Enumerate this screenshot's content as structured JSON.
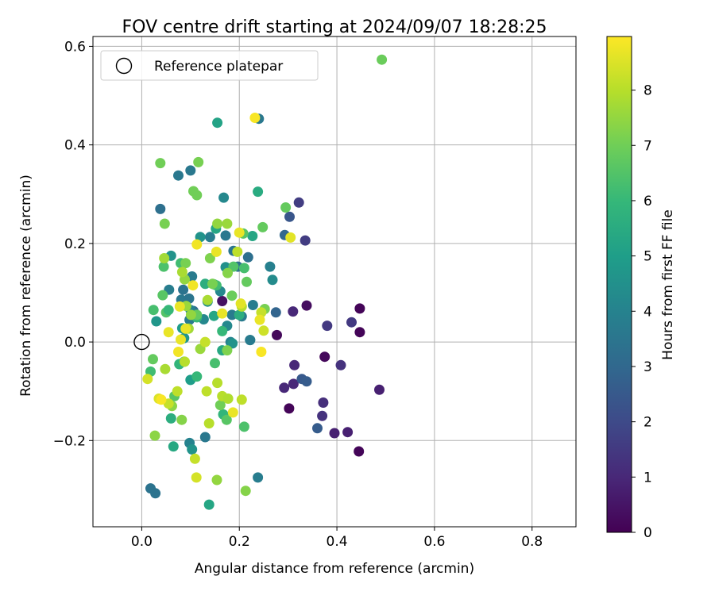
{
  "chart_data": {
    "type": "scatter",
    "title": "FOV centre drift starting at 2024/09/07 18:28:25",
    "xlabel": "Angular distance from reference (arcmin)",
    "ylabel": "Rotation from reference (arcmin)",
    "xlim": [
      -0.1,
      0.89
    ],
    "ylim": [
      -0.375,
      0.62
    ],
    "xticks": [
      0.0,
      0.2,
      0.4,
      0.6,
      0.8
    ],
    "xtick_labels": [
      "0.0",
      "0.2",
      "0.4",
      "0.6",
      "0.8"
    ],
    "yticks": [
      -0.2,
      0.0,
      0.2,
      0.4,
      0.6
    ],
    "ytick_labels": [
      "−0.2",
      "0.0",
      "0.2",
      "0.4",
      "0.6"
    ],
    "grid": true,
    "legend": {
      "placement": "top-left",
      "entries": [
        "Reference platepar"
      ]
    },
    "reference_point": {
      "x": 0.0,
      "y": 0.0,
      "label": "Reference platepar"
    },
    "colorbar": {
      "label": "Hours from first FF file",
      "colormap": "viridis",
      "range": [
        0,
        8.97
      ],
      "ticks": [
        0,
        1,
        2,
        3,
        4,
        5,
        6,
        7,
        8
      ],
      "tick_labels": [
        "0",
        "1",
        "2",
        "3",
        "4",
        "5",
        "6",
        "7",
        "8"
      ]
    },
    "series": [
      {
        "points": [
          [
            0.445,
            -0.222,
            0.1
          ],
          [
            0.447,
            0.068,
            0.1
          ],
          [
            0.447,
            0.02,
            0.1
          ],
          [
            0.302,
            -0.135,
            0.1
          ],
          [
            0.277,
            0.014,
            0.2
          ],
          [
            0.375,
            -0.03,
            0.2
          ],
          [
            0.338,
            0.074,
            0.3
          ],
          [
            0.165,
            0.083,
            0.4
          ],
          [
            0.487,
            -0.097,
            0.8
          ],
          [
            0.422,
            -0.183,
            0.8
          ],
          [
            0.395,
            -0.185,
            0.8
          ],
          [
            0.292,
            -0.093,
            1.0
          ],
          [
            0.311,
            -0.085,
            1.0
          ],
          [
            0.31,
            0.062,
            1.0
          ],
          [
            0.313,
            -0.047,
            1.0
          ],
          [
            0.372,
            -0.123,
            1.2
          ],
          [
            0.37,
            -0.15,
            1.3
          ],
          [
            0.408,
            -0.047,
            1.3
          ],
          [
            0.43,
            0.04,
            1.5
          ],
          [
            0.38,
            0.033,
            1.5
          ],
          [
            0.322,
            0.283,
            1.6
          ],
          [
            0.335,
            0.206,
            1.6
          ],
          [
            0.36,
            -0.175,
            2.6
          ],
          [
            0.303,
            0.254,
            2.4
          ],
          [
            0.328,
            -0.075,
            2.5
          ],
          [
            0.338,
            -0.08,
            2.6
          ],
          [
            0.275,
            0.06,
            2.9
          ],
          [
            0.293,
            0.217,
            3.0
          ],
          [
            0.018,
            -0.297,
            3.4
          ],
          [
            0.028,
            -0.307,
            3.4
          ],
          [
            0.038,
            0.27,
            3.3
          ],
          [
            0.1,
            0.348,
            3.6
          ],
          [
            0.075,
            0.338,
            3.6
          ],
          [
            0.24,
            0.453,
            3.6
          ],
          [
            0.238,
            -0.275,
            3.8
          ],
          [
            0.218,
            0.172,
            3.3
          ],
          [
            0.188,
            0.185,
            3.5
          ],
          [
            0.197,
            0.153,
            3.3
          ],
          [
            0.168,
            0.293,
            4.2
          ],
          [
            0.263,
            0.153,
            3.9
          ],
          [
            0.268,
            0.126,
            4.3
          ],
          [
            0.103,
            0.133,
            3.7
          ],
          [
            0.13,
            -0.193,
            3.6
          ],
          [
            0.098,
            -0.205,
            4.0
          ],
          [
            0.103,
            -0.218,
            4.6
          ],
          [
            0.056,
            0.106,
            3.8
          ],
          [
            0.098,
            0.045,
            3.7
          ],
          [
            0.081,
            0.086,
            3.6
          ],
          [
            0.085,
            0.106,
            3.4
          ],
          [
            0.106,
            0.063,
            3.2
          ],
          [
            0.097,
            0.088,
            3.5
          ],
          [
            0.185,
            0.055,
            3.7
          ],
          [
            0.222,
            0.004,
            4.3
          ],
          [
            0.228,
            0.075,
            3.8
          ],
          [
            0.205,
            0.052,
            3.7
          ],
          [
            0.175,
            0.033,
            4.2
          ],
          [
            0.182,
            0.0,
            4.0
          ],
          [
            0.186,
            -0.003,
            4.6
          ],
          [
            0.222,
            0.004,
            3.7
          ],
          [
            0.14,
            0.213,
            3.8
          ],
          [
            0.172,
            0.216,
            3.6
          ],
          [
            0.161,
            0.103,
            4.2
          ],
          [
            0.172,
            0.152,
            4.5
          ],
          [
            0.135,
            0.082,
            4.4
          ],
          [
            0.127,
            0.046,
            4.2
          ],
          [
            0.03,
            0.042,
            4.7
          ],
          [
            0.12,
            0.213,
            4.6
          ],
          [
            0.06,
            0.175,
            4.6
          ],
          [
            0.083,
            0.028,
            4.9
          ],
          [
            0.087,
            0.008,
            4.7
          ],
          [
            0.1,
            0.065,
            4.0
          ],
          [
            0.155,
            0.445,
            5.2
          ],
          [
            0.065,
            -0.212,
            5.4
          ],
          [
            0.06,
            -0.155,
            5.6
          ],
          [
            0.087,
            -0.04,
            5.2
          ],
          [
            0.1,
            -0.077,
            5.0
          ],
          [
            0.138,
            -0.33,
            5.3
          ],
          [
            0.152,
            0.23,
            5.3
          ],
          [
            0.148,
            0.117,
            5.4
          ],
          [
            0.148,
            0.053,
            5.3
          ],
          [
            0.238,
            0.305,
            5.5
          ],
          [
            0.227,
            0.215,
            5.3
          ],
          [
            0.2,
            0.055,
            5.6
          ],
          [
            0.13,
            0.118,
            5.6
          ],
          [
            0.165,
            -0.017,
            5.4
          ],
          [
            0.167,
            -0.147,
            5.9
          ],
          [
            0.165,
            0.022,
            6.0
          ],
          [
            0.077,
            -0.045,
            5.9
          ],
          [
            0.188,
            0.153,
            6.5
          ],
          [
            0.21,
            0.15,
            6.3
          ],
          [
            0.208,
            0.22,
            6.6
          ],
          [
            0.21,
            -0.172,
            6.4
          ],
          [
            0.113,
            -0.07,
            6.0
          ],
          [
            0.08,
            0.16,
            6.2
          ],
          [
            0.113,
            0.05,
            6.0
          ],
          [
            0.153,
            0.115,
            6.2
          ],
          [
            0.15,
            -0.043,
            6.3
          ],
          [
            0.174,
            -0.158,
            6.6
          ],
          [
            0.045,
            0.153,
            6.4
          ],
          [
            0.043,
            0.095,
            6.6
          ],
          [
            0.024,
            0.065,
            6.3
          ],
          [
            0.05,
            0.06,
            6.5
          ],
          [
            0.055,
            0.065,
            6.0
          ],
          [
            0.018,
            -0.06,
            6.2
          ],
          [
            0.295,
            0.273,
            6.8
          ],
          [
            0.215,
            0.122,
            6.8
          ],
          [
            0.248,
            0.233,
            6.8
          ],
          [
            0.252,
            0.067,
            7.1
          ],
          [
            0.113,
            0.055,
            6.8
          ],
          [
            0.185,
            0.094,
            6.9
          ],
          [
            0.067,
            -0.11,
            6.6
          ],
          [
            0.023,
            -0.035,
            6.8
          ],
          [
            0.038,
            0.363,
            7.0
          ],
          [
            0.106,
            0.306,
            7.0
          ],
          [
            0.113,
            0.298,
            7.0
          ],
          [
            0.116,
            0.365,
            7.1
          ],
          [
            0.492,
            0.573,
            6.9
          ],
          [
            0.09,
            0.16,
            7.1
          ],
          [
            0.047,
            0.24,
            7.1
          ],
          [
            0.082,
            -0.158,
            7.3
          ],
          [
            0.027,
            -0.19,
            7.4
          ],
          [
            0.14,
            0.17,
            7.2
          ],
          [
            0.145,
            0.118,
            7.1
          ],
          [
            0.161,
            -0.128,
            7.0
          ],
          [
            0.176,
            0.14,
            7.3
          ],
          [
            0.175,
            -0.017,
            7.2
          ],
          [
            0.213,
            -0.302,
            7.3
          ],
          [
            0.154,
            -0.28,
            7.5
          ],
          [
            0.175,
            0.24,
            7.6
          ],
          [
            0.155,
            0.24,
            7.5
          ],
          [
            0.12,
            -0.014,
            7.6
          ],
          [
            0.062,
            -0.13,
            7.4
          ],
          [
            0.048,
            -0.055,
            7.8
          ],
          [
            0.091,
            0.073,
            7.6
          ],
          [
            0.101,
            0.055,
            7.5
          ],
          [
            0.096,
            0.027,
            7.7
          ],
          [
            0.088,
            0.127,
            7.5
          ],
          [
            0.083,
            0.142,
            7.8
          ],
          [
            0.046,
            0.17,
            7.7
          ],
          [
            0.135,
            0.085,
            7.8
          ],
          [
            0.196,
            0.183,
            8.1
          ],
          [
            0.205,
            0.072,
            8.0
          ],
          [
            0.25,
            0.023,
            8.3
          ],
          [
            0.245,
            0.06,
            8.2
          ],
          [
            0.138,
            -0.165,
            8.0
          ],
          [
            0.133,
            -0.1,
            8.1
          ],
          [
            0.155,
            -0.083,
            8.0
          ],
          [
            0.165,
            -0.11,
            8.0
          ],
          [
            0.177,
            -0.115,
            7.9
          ],
          [
            0.205,
            -0.117,
            8.1
          ],
          [
            0.109,
            -0.237,
            8.2
          ],
          [
            0.112,
            -0.275,
            8.4
          ],
          [
            0.13,
            0.0,
            8.2
          ],
          [
            0.073,
            -0.1,
            8.1
          ],
          [
            0.088,
            -0.04,
            8.0
          ],
          [
            0.035,
            -0.115,
            8.5
          ],
          [
            0.055,
            -0.125,
            8.2
          ],
          [
            0.012,
            -0.075,
            8.4
          ],
          [
            0.305,
            0.212,
            8.6
          ],
          [
            0.232,
            0.455,
            8.9
          ],
          [
            0.2,
            0.222,
            8.7
          ],
          [
            0.113,
            0.198,
            8.8
          ],
          [
            0.153,
            0.183,
            8.7
          ],
          [
            0.242,
            0.045,
            8.7
          ],
          [
            0.203,
            0.078,
            8.6
          ],
          [
            0.165,
            0.058,
            8.7
          ],
          [
            0.187,
            -0.143,
            8.7
          ],
          [
            0.245,
            -0.02,
            8.9
          ],
          [
            0.105,
            0.115,
            8.8
          ],
          [
            0.078,
            0.072,
            8.7
          ],
          [
            0.055,
            0.02,
            8.7
          ],
          [
            0.08,
            0.005,
            8.7
          ],
          [
            0.075,
            -0.02,
            8.8
          ],
          [
            0.04,
            -0.117,
            8.9
          ],
          [
            0.09,
            0.027,
            8.7
          ]
        ]
      }
    ]
  }
}
